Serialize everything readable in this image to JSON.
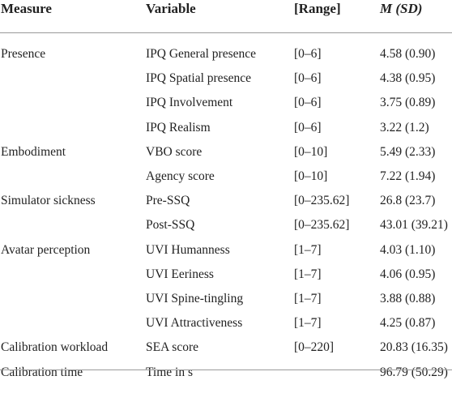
{
  "headers": {
    "measure": "Measure",
    "variable": "Variable",
    "range": "[Range]",
    "m_sd": "M (SD)"
  },
  "rows": [
    {
      "measure": "Presence",
      "variable": "IPQ General presence",
      "range": "[0–6]",
      "value": "4.58 (0.90)"
    },
    {
      "measure": "",
      "variable": "IPQ Spatial presence",
      "range": "[0–6]",
      "value": "4.38 (0.95)"
    },
    {
      "measure": "",
      "variable": "IPQ Involvement",
      "range": "[0–6]",
      "value": "3.75 (0.89)"
    },
    {
      "measure": "",
      "variable": "IPQ Realism",
      "range": "[0–6]",
      "value": "3.22 (1.2)"
    },
    {
      "measure": "Embodiment",
      "variable": "VBO score",
      "range": "[0–10]",
      "value": "5.49 (2.33)"
    },
    {
      "measure": "",
      "variable": "Agency score",
      "range": "[0–10]",
      "value": "7.22 (1.94)"
    },
    {
      "measure": "Simulator sickness",
      "variable": "Pre-SSQ",
      "range": "[0–235.62]",
      "value": "26.8 (23.7)"
    },
    {
      "measure": "",
      "variable": "Post-SSQ",
      "range": "[0–235.62]",
      "value": "43.01 (39.21)"
    },
    {
      "measure": "Avatar perception",
      "variable": "UVI Humanness",
      "range": "[1–7]",
      "value": "4.03 (1.10)"
    },
    {
      "measure": "",
      "variable": "UVI Eeriness",
      "range": "[1–7]",
      "value": "4.06 (0.95)"
    },
    {
      "measure": "",
      "variable": "UVI Spine-tingling",
      "range": "[1–7]",
      "value": "3.88 (0.88)"
    },
    {
      "measure": "",
      "variable": "UVI Attractiveness",
      "range": "[1–7]",
      "value": "4.25 (0.87)"
    },
    {
      "measure": "Calibration workload",
      "variable": "SEA score",
      "range": "[0–220]",
      "value": "20.83 (16.35)"
    },
    {
      "measure": "Calibration time",
      "variable": "Time in s",
      "range": "",
      "value": "96.79 (50.29)"
    }
  ]
}
